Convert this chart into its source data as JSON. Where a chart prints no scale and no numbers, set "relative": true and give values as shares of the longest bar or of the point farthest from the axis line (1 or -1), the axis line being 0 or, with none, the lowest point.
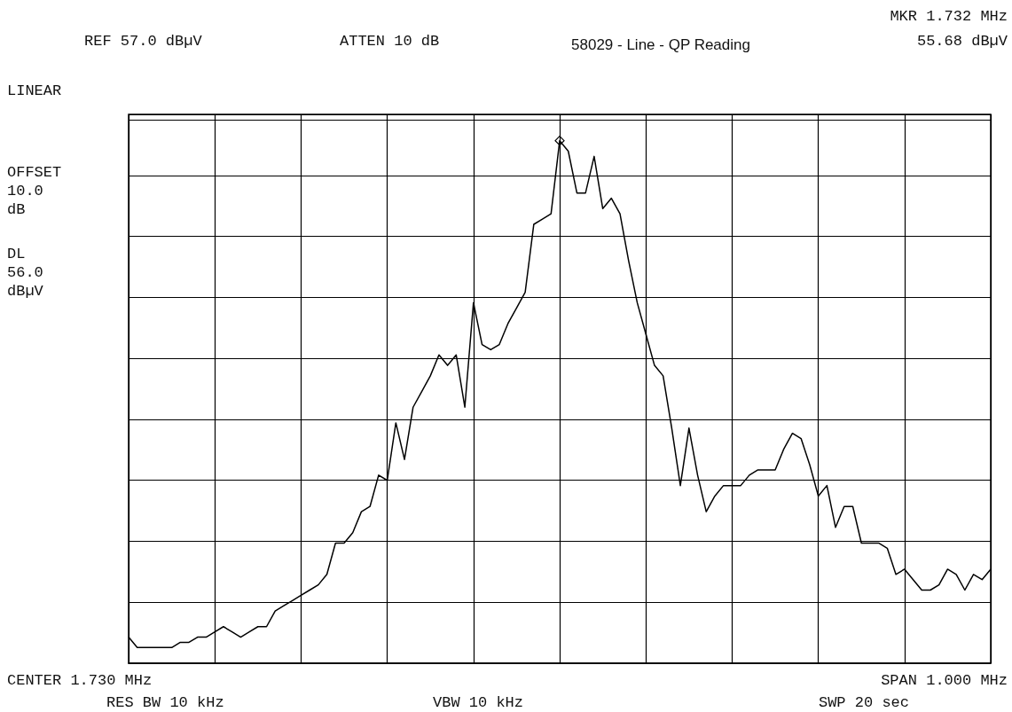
{
  "chart_data": {
    "type": "line",
    "title": "58029 - Line - QP Reading",
    "relative": true,
    "grid": true,
    "marker": "none",
    "annotations": [
      "REF 57.0 dBµV",
      "ATTEN 10 dB",
      "MKR 1.732 MHz",
      "55.68 dBµV",
      "LINEAR",
      "OFFSET 10.0 dB",
      "DL 56.0 dBµV",
      "CENTER 1.730 MHz",
      "RES BW 10 kHz",
      "VBW 10 kHz",
      "SPAN 1.000 MHz",
      "SWP 20 sec"
    ],
    "ref_lines": [
      {
        "axis": "y",
        "value": 1.04,
        "color": "#000000"
      }
    ],
    "categories": [
      null,
      null,
      null,
      null,
      null,
      null,
      null,
      null,
      null,
      null,
      null,
      null,
      null,
      null,
      null,
      null,
      null,
      null,
      null,
      null,
      null,
      null,
      null,
      null,
      null,
      null,
      null,
      null,
      null,
      null,
      null,
      null,
      null,
      null,
      null,
      null,
      null,
      null,
      null,
      null,
      null,
      null,
      null,
      null,
      null,
      null,
      null,
      null,
      null,
      null,
      null,
      null,
      null,
      null,
      null,
      null,
      null,
      null,
      null,
      null,
      null,
      null,
      null,
      null,
      null,
      null,
      null,
      null,
      null,
      null,
      null,
      null,
      null,
      null,
      null,
      null,
      null,
      null,
      null,
      null,
      null,
      null,
      null,
      null,
      null,
      null,
      null,
      null,
      null,
      null,
      null,
      null,
      null,
      null,
      null,
      null,
      null,
      null,
      null,
      null,
      null
    ],
    "series": [
      {
        "color": "#000000",
        "values": [
          0.05,
          0.03,
          0.03,
          0.03,
          0.03,
          0.03,
          0.04,
          0.04,
          0.05,
          0.05,
          0.06,
          0.07,
          0.06,
          0.05,
          0.06,
          0.07,
          0.07,
          0.1,
          0.11,
          0.12,
          0.13,
          0.14,
          0.15,
          0.17,
          0.23,
          0.23,
          0.25,
          0.29,
          0.3,
          0.36,
          0.35,
          0.46,
          0.39,
          0.49,
          0.52,
          0.55,
          0.59,
          0.57,
          0.59,
          0.49,
          0.69,
          0.61,
          0.6,
          0.61,
          0.65,
          0.68,
          0.71,
          0.84,
          0.85,
          0.86,
          1.0,
          0.98,
          0.9,
          0.9,
          0.97,
          0.87,
          0.89,
          0.86,
          0.77,
          0.69,
          0.63,
          0.57,
          0.55,
          0.45,
          0.34,
          0.45,
          0.36,
          0.29,
          0.32,
          0.34,
          0.34,
          0.34,
          0.36,
          0.37,
          0.37,
          0.37,
          0.41,
          0.44,
          0.43,
          0.38,
          0.32,
          0.34,
          0.26,
          0.3,
          0.3,
          0.23,
          0.23,
          0.23,
          0.22,
          0.17,
          0.18,
          0.16,
          0.14,
          0.14,
          0.15,
          0.18,
          0.17,
          0.14,
          0.17,
          0.16,
          0.18
        ]
      }
    ]
  }
}
